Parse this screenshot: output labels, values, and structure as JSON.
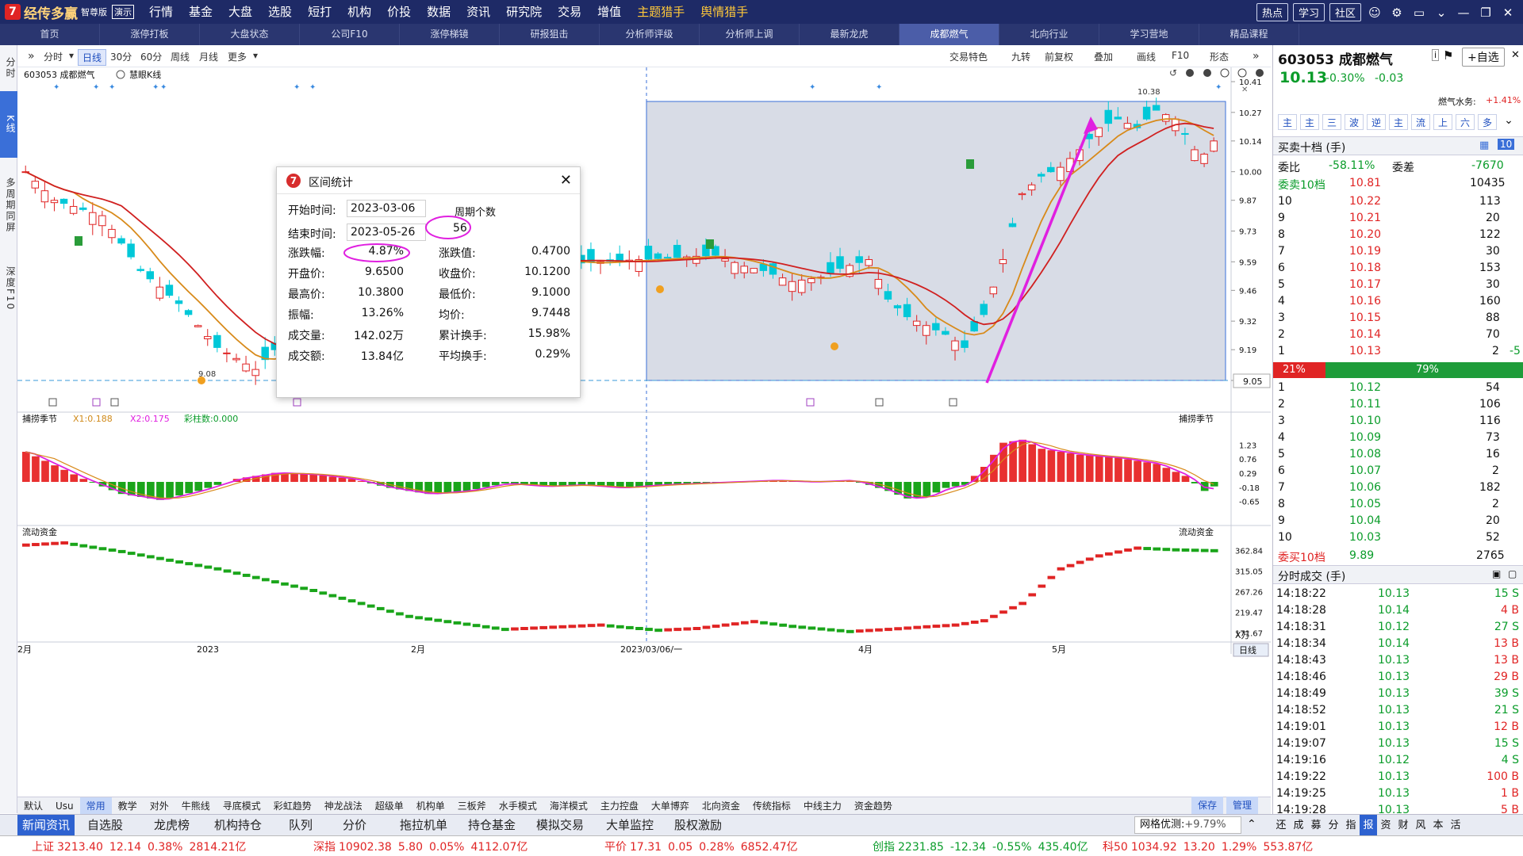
{
  "app": {
    "logo_mark": "7",
    "name": "经传多赢",
    "edition": "智尊版",
    "demo": "演示"
  },
  "menu": [
    {
      "label": "行情"
    },
    {
      "label": "基金"
    },
    {
      "label": "大盘"
    },
    {
      "label": "选股"
    },
    {
      "label": "短打"
    },
    {
      "label": "机构",
      "dot": true
    },
    {
      "label": "价投"
    },
    {
      "label": "数据"
    },
    {
      "label": "资讯"
    },
    {
      "label": "研究院"
    },
    {
      "label": "交易"
    },
    {
      "label": "增值",
      "dot": true
    },
    {
      "label": "主题猎手",
      "hl": true
    },
    {
      "label": "舆情猎手",
      "hl": true
    }
  ],
  "top_buttons": [
    "热点",
    "学习",
    "社区"
  ],
  "tabs": [
    "首页",
    "涨停打板",
    "大盘状态",
    "公司F10",
    "涨停梯镜",
    "研报狙击",
    "分析师评级",
    "分析师上调",
    "最新龙虎",
    "成都燃气",
    "北向行业",
    "学习营地",
    "精品课程"
  ],
  "active_tab": 9,
  "left_strip": [
    "分时",
    "K线",
    "多周期同屏",
    "深度F10"
  ],
  "chart_toolbar": {
    "left": [
      "分时",
      "日线",
      "30分",
      "60分",
      "周线",
      "月线",
      "更多"
    ],
    "active": "日线",
    "right": [
      "交易特色",
      "九转",
      "前复权",
      "叠加",
      "画线",
      "F10",
      "形态"
    ]
  },
  "chart": {
    "title": "603053 成都燃气",
    "subtitle": "慧眼K线",
    "price_ticks": [
      "10.41",
      "10.27",
      "10.14",
      "10.00",
      "9.87",
      "9.73",
      "9.59",
      "9.46",
      "9.32",
      "9.19",
      "9.05"
    ],
    "current_price_label": "9.05",
    "high_label": "10.38",
    "low_label": "9.08",
    "x_labels": [
      "2月",
      "2023",
      "2月",
      "2023/03/06/一",
      "4月",
      "5月"
    ],
    "osc_title": "捕捞季节",
    "osc_x1": "X1:0.188",
    "osc_x2": "X2:0.175",
    "osc_bars": "彩柱数:0.000",
    "osc_ticks": [
      "1.23",
      "0.76",
      "0.29",
      "-0.18",
      "-0.65"
    ],
    "flow_title": "流动资金",
    "flow_ticks": [
      "362.84",
      "315.05",
      "267.26",
      "219.47",
      "171.67"
    ],
    "flow_unit": "X万"
  },
  "popup": {
    "title": "区间统计",
    "start_label": "开始时间:",
    "start": "2023-03-06",
    "end_label": "结束时间:",
    "end": "2023-05-26",
    "period_label": "周期个数",
    "period": "56",
    "rows": [
      {
        "l1": "涨跌幅:",
        "v1": "4.87%",
        "l2": "涨跌值:",
        "v2": "0.4700"
      },
      {
        "l1": "开盘价:",
        "v1": "9.6500",
        "l2": "收盘价:",
        "v2": "10.1200"
      },
      {
        "l1": "最高价:",
        "v1": "10.3800",
        "l2": "最低价:",
        "v2": "9.1000"
      },
      {
        "l1": "振幅:",
        "v1": "13.26%",
        "l2": "均价:",
        "v2": "9.7448"
      },
      {
        "l1": "成交量:",
        "v1": "142.02万",
        "l2": "累计换手:",
        "v2": "15.98%"
      },
      {
        "l1": "成交额:",
        "v1": "13.84亿",
        "l2": "平均换手:",
        "v2": "0.29%"
      }
    ]
  },
  "bottom_tools": [
    "默认",
    "Usu",
    "常用",
    "教学",
    "对外",
    "牛熊线",
    "寻底模式",
    "彩虹趋势",
    "神龙战法",
    "超级单",
    "机构单",
    "三板斧",
    "水手模式",
    "海洋模式",
    "主力控盘",
    "大单博弈",
    "北向资金",
    "传统指标",
    "中线主力",
    "资金趋势"
  ],
  "bottom_tools_active": "常用",
  "bottom_right": [
    "保存",
    "管理"
  ],
  "day_label": "日线",
  "bottom_tabs": [
    "新闻资讯",
    "自选股",
    "龙虎榜",
    "机构持仓",
    "队列",
    "分价",
    "拖拉机单",
    "持仓基金",
    "模拟交易",
    "大单监控",
    "股权激励"
  ],
  "net_label": "网格优测:",
  "net_val": "+9.79%",
  "bottom_right_tabs": [
    "还",
    "成",
    "募",
    "分",
    "指",
    "报",
    "资",
    "财",
    "风",
    "本",
    "活"
  ],
  "status": [
    {
      "name": "上证",
      "v": "3213.40",
      "c": "12.14",
      "p": "0.38%",
      "amt": "2814.21亿"
    },
    {
      "name": "深指",
      "v": "10902.38",
      "c": "5.80",
      "p": "0.05%",
      "amt": "4112.07亿"
    },
    {
      "name": "平价",
      "v": "17.31",
      "c": "0.05",
      "p": "0.28%",
      "amt": "6852.47亿"
    },
    {
      "name": "创指",
      "v": "2231.85",
      "c": "-12.34",
      "p": "-0.55%",
      "amt": "435.40亿"
    },
    {
      "name": "科50",
      "v": "1034.92",
      "c": "13.20",
      "p": "1.29%",
      "amt": "553.87亿"
    }
  ],
  "right": {
    "code_name": "603053 成都燃气",
    "add": "+自选",
    "price": "10.13",
    "pct": "-0.30%",
    "chg": "-0.03",
    "sector": "燃气水务:",
    "sector_pct": "+1.41%",
    "icons": [
      "主",
      "主",
      "三",
      "波",
      "逆",
      "主",
      "流",
      "上",
      "六",
      "多"
    ],
    "book_title": "买卖十档 (手)",
    "wb_label": "委比",
    "wb": "-58.11%",
    "wc_label": "委差",
    "wc": "-7670",
    "sell10_label": "委卖10档",
    "sell10_price": "10.81",
    "sell10_vol": "10435",
    "asks": [
      [
        "10",
        "10.22",
        "113"
      ],
      [
        "9",
        "10.21",
        "20"
      ],
      [
        "8",
        "10.20",
        "122"
      ],
      [
        "7",
        "10.19",
        "30"
      ],
      [
        "6",
        "10.18",
        "153"
      ],
      [
        "5",
        "10.17",
        "30"
      ],
      [
        "4",
        "10.16",
        "160"
      ],
      [
        "3",
        "10.15",
        "88"
      ],
      [
        "2",
        "10.14",
        "70"
      ],
      [
        "1",
        "10.13",
        "2",
        "-5"
      ]
    ],
    "ratio_left": "21%",
    "ratio_right": "79%",
    "ratio_value": 0.21,
    "bids": [
      [
        "1",
        "10.12",
        "54"
      ],
      [
        "2",
        "10.11",
        "106"
      ],
      [
        "3",
        "10.10",
        "116"
      ],
      [
        "4",
        "10.09",
        "73"
      ],
      [
        "5",
        "10.08",
        "16"
      ],
      [
        "6",
        "10.07",
        "2"
      ],
      [
        "7",
        "10.06",
        "182"
      ],
      [
        "8",
        "10.05",
        "2"
      ],
      [
        "9",
        "10.04",
        "20"
      ],
      [
        "10",
        "10.03",
        "52"
      ]
    ],
    "buy10_label": "委买10档",
    "buy10_price": "9.89",
    "buy10_vol": "2765",
    "trades_title": "分时成交 (手)",
    "trades": [
      [
        "14:18:22",
        "10.13",
        "15 S"
      ],
      [
        "14:18:28",
        "10.14",
        "4 B"
      ],
      [
        "14:18:31",
        "10.12",
        "27 S"
      ],
      [
        "14:18:34",
        "10.14",
        "13 B"
      ],
      [
        "14:18:43",
        "10.13",
        "13 B"
      ],
      [
        "14:18:46",
        "10.13",
        "29 B"
      ],
      [
        "14:18:49",
        "10.13",
        "39 S"
      ],
      [
        "14:18:52",
        "10.13",
        "21 S"
      ],
      [
        "14:19:01",
        "10.13",
        "12 B"
      ],
      [
        "14:19:07",
        "10.13",
        "15 S"
      ],
      [
        "14:19:16",
        "10.12",
        "4 S"
      ],
      [
        "14:19:22",
        "10.13",
        "100 B"
      ],
      [
        "14:19:25",
        "10.13",
        "1 B"
      ],
      [
        "14:19:28",
        "10.13",
        "5 B"
      ]
    ]
  },
  "colors": {
    "up": "#e02424",
    "down": "#00c8d8",
    "ma5": "#d88a1a",
    "ma10": "#d02020",
    "select": "#b8bfd2",
    "annot": "#e020e0"
  }
}
